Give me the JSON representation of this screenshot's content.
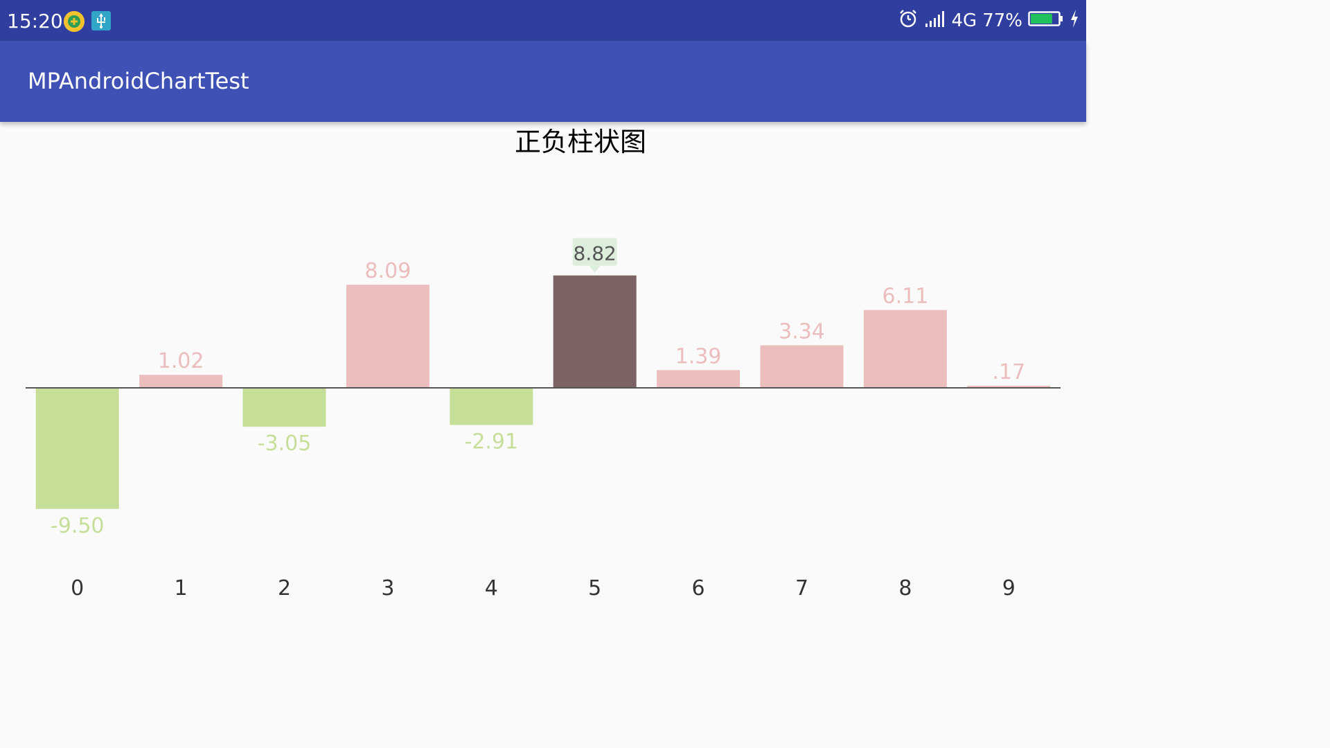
{
  "status_bar": {
    "time": "15:20",
    "network": "4G",
    "battery_percent": "77%",
    "battery_level": 0.77,
    "icons": [
      "plus-circle-icon",
      "usb-icon",
      "alarm-icon",
      "signal-icon",
      "battery-icon",
      "charging-icon"
    ]
  },
  "app_bar": {
    "title": "MPAndroidChartTest"
  },
  "colors": {
    "status_bar": "#303f9f",
    "app_bar": "#3f51b5",
    "positive_bar": "#ecbdbd",
    "negative_bar": "#c5df98",
    "highlight_bar": "#7c6363",
    "marker_bg": "#ddeedd",
    "zero_line": "#555555"
  },
  "chart_data": {
    "type": "bar",
    "title": "正负柱状图",
    "categories": [
      "0",
      "1",
      "2",
      "3",
      "4",
      "5",
      "6",
      "7",
      "8",
      "9"
    ],
    "values": [
      -9.5,
      1.02,
      -3.05,
      8.09,
      -2.91,
      8.82,
      1.39,
      3.34,
      6.11,
      0.17
    ],
    "value_labels": [
      "-9.50",
      "1.02",
      "-3.05",
      "8.09",
      "-2.91",
      "",
      "1.39",
      "3.34",
      "6.11",
      ".17"
    ],
    "highlighted_index": 5,
    "marker_label": "8.82",
    "ylim": [
      -10,
      10
    ],
    "grid": false,
    "legend": "none"
  }
}
